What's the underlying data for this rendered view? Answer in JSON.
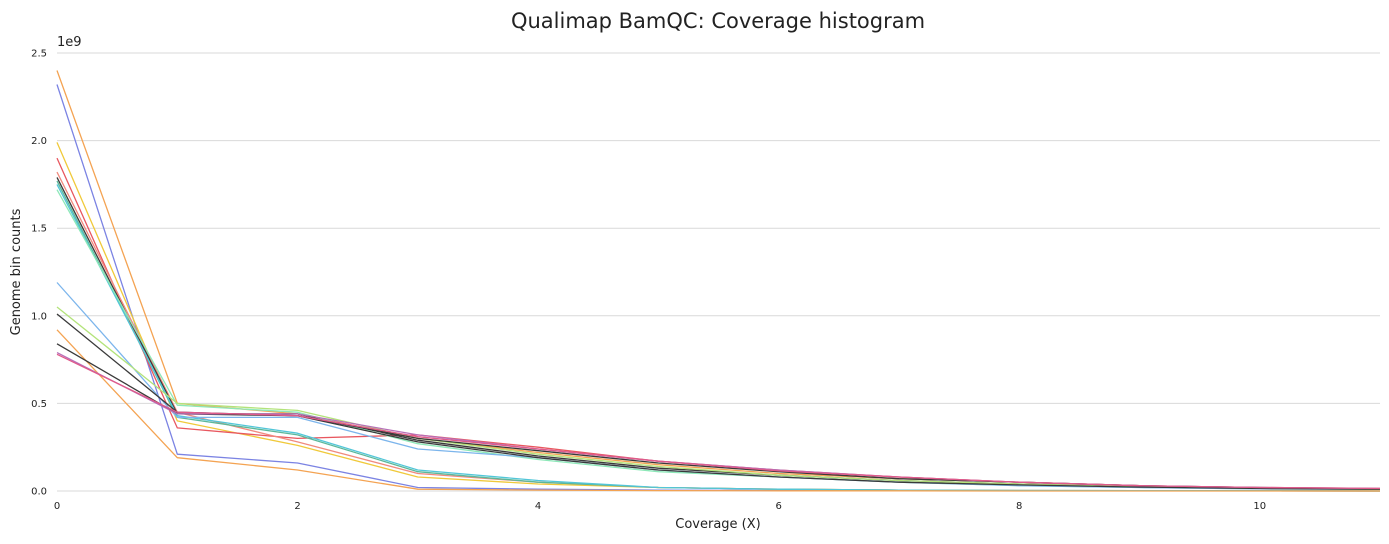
{
  "chart_data": {
    "type": "line",
    "title": "Qualimap BamQC: Coverage histogram",
    "xlabel": "Coverage (X)",
    "ylabel": "Genome bin counts",
    "y_multiplier_label": "1e9",
    "xlim": [
      0,
      11
    ],
    "ylim": [
      0,
      2.5
    ],
    "x_ticks": [
      "0",
      "2",
      "4",
      "6",
      "8",
      "10"
    ],
    "x_tick_values": [
      0,
      2,
      4,
      6,
      8,
      10
    ],
    "y_ticks": [
      "0.0",
      "0.5",
      "1.0",
      "1.5",
      "2.0",
      "2.5"
    ],
    "y_tick_values": [
      0,
      0.5,
      1.0,
      1.5,
      2.0,
      2.5
    ],
    "grid": "horizontal",
    "legend": "none",
    "x": [
      0,
      1,
      2,
      3,
      4,
      5,
      6,
      7,
      8,
      9,
      10,
      11
    ],
    "series": [
      {
        "color": "#f4a352",
        "values": [
          2.4,
          0.5,
          0.44,
          0.3,
          0.22,
          0.15,
          0.1,
          0.07,
          0.05,
          0.03,
          0.015,
          0.01
        ]
      },
      {
        "color": "#7b83e3",
        "values": [
          2.32,
          0.21,
          0.16,
          0.02,
          0.01,
          0.005,
          0.003,
          0.002,
          0.001,
          0.001,
          0.001,
          0.0
        ]
      },
      {
        "color": "#f0c93a",
        "values": [
          1.99,
          0.4,
          0.26,
          0.08,
          0.04,
          0.02,
          0.01,
          0.005,
          0.003,
          0.002,
          0.001,
          0.0
        ]
      },
      {
        "color": "#e8575f",
        "values": [
          1.9,
          0.36,
          0.3,
          0.32,
          0.25,
          0.17,
          0.12,
          0.08,
          0.05,
          0.03,
          0.02,
          0.015
        ]
      },
      {
        "color": "#f08a7e",
        "values": [
          1.82,
          0.45,
          0.28,
          0.1,
          0.05,
          0.02,
          0.01,
          0.005,
          0.003,
          0.002,
          0.001,
          0.0
        ]
      },
      {
        "color": "#3a3a3a",
        "values": [
          1.79,
          0.44,
          0.44,
          0.29,
          0.2,
          0.13,
          0.09,
          0.06,
          0.04,
          0.025,
          0.015,
          0.01
        ]
      },
      {
        "color": "#5bb89a",
        "values": [
          1.77,
          0.42,
          0.32,
          0.11,
          0.05,
          0.02,
          0.01,
          0.005,
          0.003,
          0.002,
          0.001,
          0.0
        ]
      },
      {
        "color": "#52c6d8",
        "values": [
          1.75,
          0.43,
          0.33,
          0.12,
          0.06,
          0.02,
          0.01,
          0.005,
          0.003,
          0.002,
          0.001,
          0.0
        ]
      },
      {
        "color": "#8de8b8",
        "values": [
          1.72,
          0.49,
          0.45,
          0.27,
          0.18,
          0.11,
          0.08,
          0.05,
          0.03,
          0.02,
          0.012,
          0.01
        ]
      },
      {
        "color": "#7cb5ec",
        "values": [
          1.19,
          0.42,
          0.42,
          0.24,
          0.19,
          0.12,
          0.08,
          0.05,
          0.03,
          0.02,
          0.012,
          0.01
        ]
      },
      {
        "color": "#b3e37a",
        "values": [
          1.05,
          0.5,
          0.46,
          0.3,
          0.21,
          0.14,
          0.09,
          0.06,
          0.04,
          0.025,
          0.015,
          0.01
        ]
      },
      {
        "color": "#3a3a3a",
        "values": [
          1.01,
          0.45,
          0.43,
          0.28,
          0.19,
          0.12,
          0.08,
          0.05,
          0.035,
          0.022,
          0.014,
          0.01
        ]
      },
      {
        "color": "#f4a352",
        "values": [
          0.92,
          0.19,
          0.12,
          0.01,
          0.005,
          0.002,
          0.001,
          0.001,
          0.0,
          0.0,
          0.0,
          0.0
        ]
      },
      {
        "color": "#3a3a3a",
        "values": [
          0.84,
          0.44,
          0.43,
          0.3,
          0.23,
          0.16,
          0.11,
          0.07,
          0.05,
          0.03,
          0.02,
          0.012
        ]
      },
      {
        "color": "#b76fb8",
        "values": [
          0.79,
          0.44,
          0.44,
          0.32,
          0.24,
          0.17,
          0.12,
          0.08,
          0.05,
          0.03,
          0.02,
          0.015
        ]
      },
      {
        "color": "#e05a8a",
        "values": [
          0.78,
          0.45,
          0.43,
          0.31,
          0.24,
          0.17,
          0.115,
          0.08,
          0.05,
          0.03,
          0.02,
          0.014
        ]
      }
    ]
  }
}
